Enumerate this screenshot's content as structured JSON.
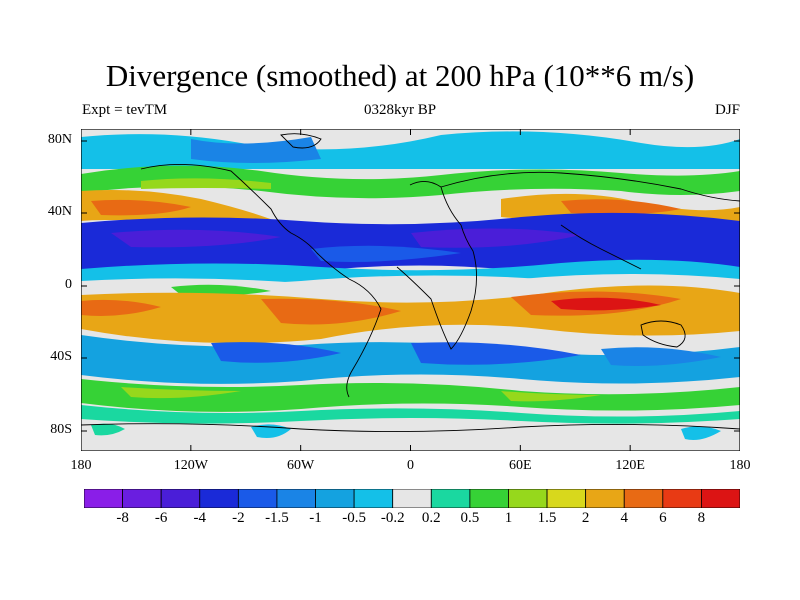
{
  "title": "Divergence (smoothed) at 200 hPa (10**6 m/s)",
  "subtitle_left": "Expt = tevTM",
  "subtitle_center": "0328kyr BP",
  "subtitle_right": "DJF",
  "y_ticks": [
    "80N",
    "40N",
    "0",
    "40S",
    "80S"
  ],
  "x_ticks": [
    "180",
    "120W",
    "60W",
    "0",
    "60E",
    "120E",
    "180"
  ],
  "colorbar": {
    "labels": [
      "-8",
      "-6",
      "-4",
      "-2",
      "-1.5",
      "-1",
      "-0.5",
      "-0.2",
      "0.2",
      "0.5",
      "1",
      "1.5",
      "2",
      "4",
      "6",
      "8"
    ],
    "colors": [
      "#8a1ee8",
      "#6a1ee0",
      "#4a1ed8",
      "#1a2ad8",
      "#1a5ae8",
      "#1a84e6",
      "#14a2e0",
      "#14c0e8",
      "#e6e6e6",
      "#1ad8a0",
      "#36d236",
      "#96d81c",
      "#d8d81c",
      "#e8a616",
      "#e86a14",
      "#e83a14",
      "#dc1414"
    ]
  },
  "chart_data": {
    "type": "heatmap",
    "title": "Divergence (smoothed) at 200 hPa (10**6 m/s)",
    "xlabel": "",
    "ylabel": "",
    "xlim": [
      -180,
      180
    ],
    "ylim": [
      -90,
      90
    ],
    "x_ticks": [
      "180",
      "120W",
      "60W",
      "0",
      "60E",
      "120E",
      "180"
    ],
    "y_ticks": [
      "80N",
      "40N",
      "0",
      "40S",
      "80S"
    ],
    "contour_levels": [
      -8,
      -6,
      -4,
      -2,
      -1.5,
      -1,
      -0.5,
      -0.2,
      0.2,
      0.5,
      1,
      1.5,
      2,
      4,
      6,
      8
    ],
    "zonal_profile": [
      {
        "lat": 80,
        "value": -0.6
      },
      {
        "lat": 60,
        "value": 0.4
      },
      {
        "lat": 40,
        "value": 3.0
      },
      {
        "lat": 20,
        "value": -3.0
      },
      {
        "lat": 0,
        "value": 0.5
      },
      {
        "lat": -15,
        "value": 3.0
      },
      {
        "lat": -35,
        "value": -1.3
      },
      {
        "lat": -55,
        "value": 1.0
      },
      {
        "lat": -75,
        "value": 0.0
      }
    ]
  }
}
